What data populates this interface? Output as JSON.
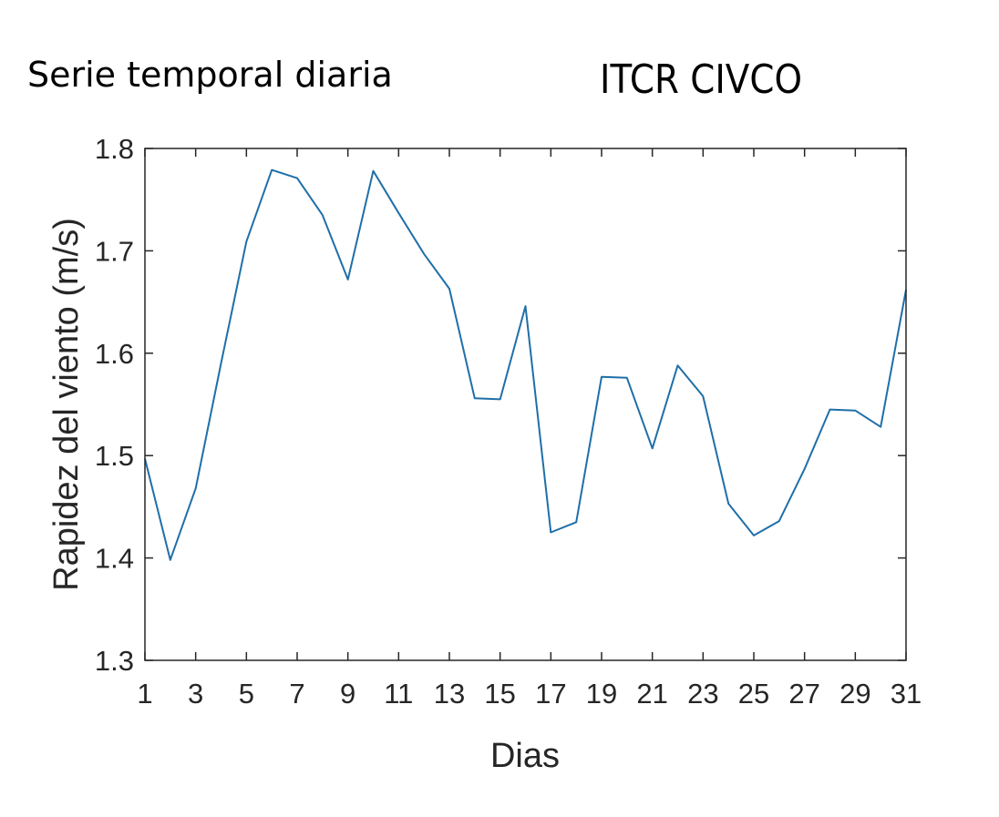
{
  "chart_data": {
    "type": "line",
    "title_left": "Serie temporal diaria",
    "title_right": "ITCR CIVCO",
    "xlabel": "Dias",
    "ylabel": "Rapidez del viento (m/s)",
    "xlim": [
      1,
      31
    ],
    "ylim": [
      1.3,
      1.8
    ],
    "xticks": [
      1,
      3,
      5,
      7,
      9,
      11,
      13,
      15,
      17,
      19,
      21,
      23,
      25,
      27,
      29,
      31
    ],
    "yticks": [
      1.3,
      1.4,
      1.5,
      1.6,
      1.7,
      1.8
    ],
    "ytick_labels": [
      "1.3",
      "1.4",
      "1.5",
      "1.6",
      "1.7",
      "1.8"
    ],
    "grid": false,
    "series": [
      {
        "color": "#1f6fa8",
        "x": [
          1,
          2,
          3,
          4,
          5,
          6,
          7,
          8,
          9,
          10,
          11,
          12,
          13,
          14,
          15,
          16,
          17,
          18,
          19,
          20,
          21,
          22,
          23,
          24,
          25,
          26,
          27,
          28,
          29,
          30,
          31
        ],
        "y": [
          1.497,
          1.398,
          1.468,
          1.59,
          1.709,
          1.779,
          1.771,
          1.735,
          1.672,
          1.778,
          1.737,
          1.697,
          1.663,
          1.556,
          1.555,
          1.646,
          1.425,
          1.435,
          1.577,
          1.576,
          1.507,
          1.588,
          1.558,
          1.453,
          1.422,
          1.436,
          1.487,
          1.545,
          1.544,
          1.528,
          1.662
        ]
      }
    ]
  }
}
